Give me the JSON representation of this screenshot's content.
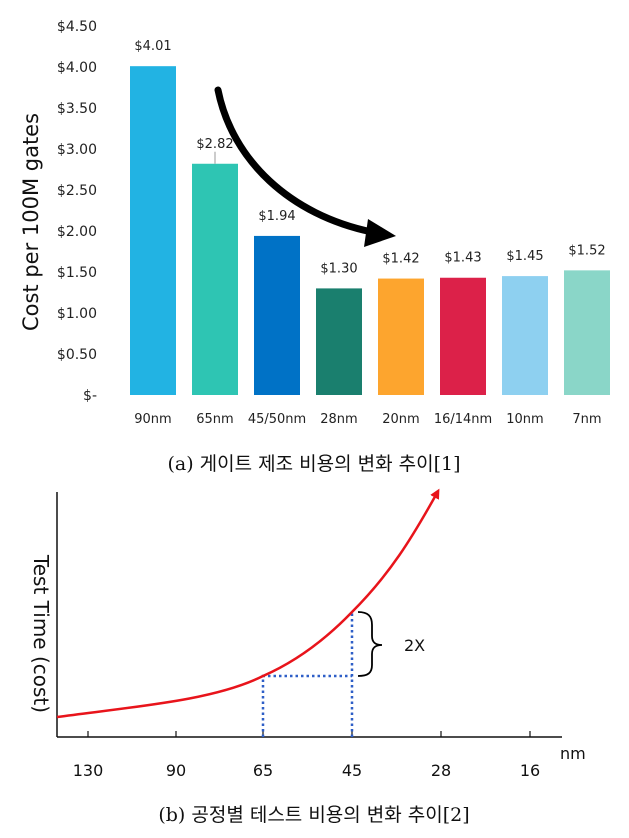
{
  "chart_data": [
    {
      "type": "bar",
      "title": "",
      "ylabel": "Cost per 100M gates",
      "xlabel": "",
      "ylim": [
        0,
        4.5
      ],
      "ytick_labels": [
        "$-",
        "$0.50",
        "$1.00",
        "$1.50",
        "$2.00",
        "$2.50",
        "$3.00",
        "$3.50",
        "$4.00",
        "$4.50"
      ],
      "ytick_values": [
        0,
        0.5,
        1.0,
        1.5,
        2.0,
        2.5,
        3.0,
        3.5,
        4.0,
        4.5
      ],
      "categories": [
        "90nm",
        "65nm",
        "45/50nm",
        "28nm",
        "20nm",
        "16/14nm",
        "10nm",
        "7nm"
      ],
      "values": [
        4.01,
        2.82,
        1.94,
        1.3,
        1.42,
        1.43,
        1.45,
        1.52
      ],
      "value_labels": [
        "$4.01",
        "$2.82",
        "$1.94",
        "$1.30",
        "$1.42",
        "$1.43",
        "$1.45",
        "$1.52"
      ],
      "colors": [
        "#22b3e3",
        "#2ec5b3",
        "#0072c6",
        "#1a7f6e",
        "#fda52e",
        "#dc2149",
        "#8ed0f0",
        "#8ad6c8"
      ],
      "grid": false,
      "caption": "(a) 게이트 제조 비용의 변화 추이[1]"
    },
    {
      "type": "line",
      "title": "",
      "ylabel": "Test Time (cost)",
      "xlabel": "nm",
      "x_tick_labels": [
        "130",
        "90",
        "65",
        "45",
        "28",
        "16"
      ],
      "annotation": "2X",
      "series_color": "#e8141b",
      "guide_color": "#2e5fc7",
      "caption": "(b) 공정별 테스트 비용의 변화 추이[2]"
    }
  ]
}
